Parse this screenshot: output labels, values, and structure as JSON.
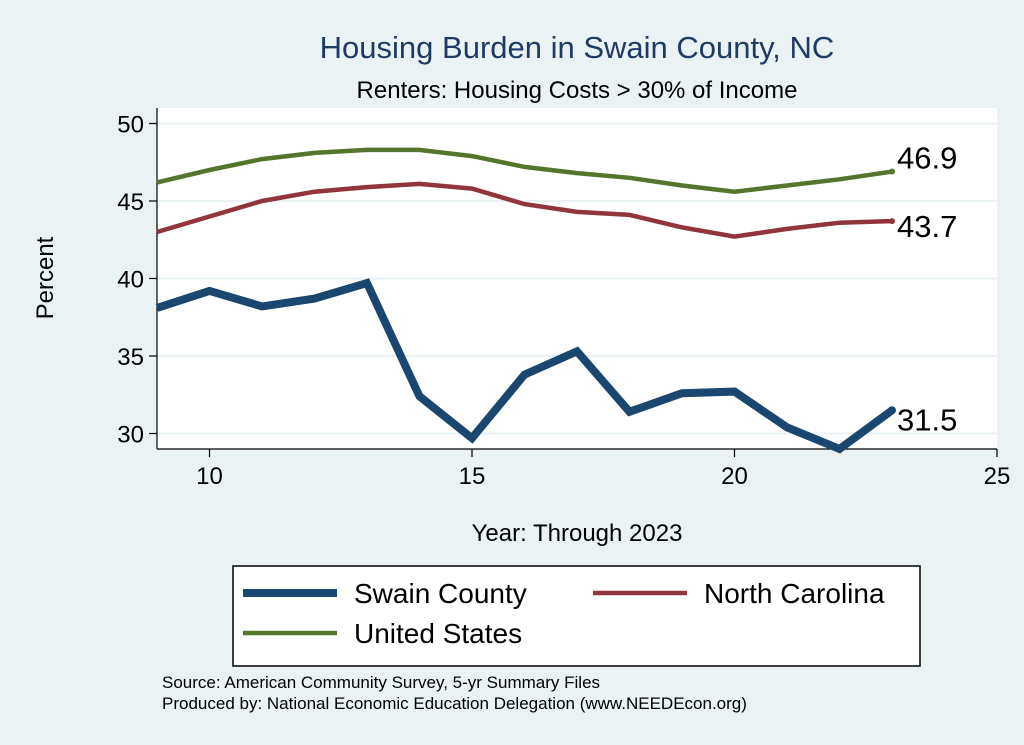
{
  "chart_data": {
    "type": "line",
    "title": "Housing Burden in Swain County, NC",
    "subtitle": "Renters: Housing Costs > 30% of Income",
    "xlabel": "Year: Through 2023",
    "ylabel": "Percent",
    "xlim": [
      9,
      25
    ],
    "ylim": [
      29,
      51
    ],
    "xticks": [
      10,
      15,
      20,
      25
    ],
    "yticks": [
      30,
      35,
      40,
      45,
      50
    ],
    "grid": true,
    "x": [
      9,
      10,
      11,
      12,
      13,
      14,
      15,
      16,
      17,
      18,
      19,
      20,
      21,
      22,
      23
    ],
    "series": [
      {
        "name": "Swain County",
        "color": "#1a476f",
        "values": [
          38.1,
          39.2,
          38.2,
          38.7,
          39.7,
          32.4,
          29.7,
          33.8,
          35.3,
          31.4,
          32.6,
          32.7,
          30.4,
          29.0,
          31.5
        ],
        "end_label": "31.5"
      },
      {
        "name": "North Carolina",
        "color": "#90353b",
        "values": [
          43.0,
          44.0,
          45.0,
          45.6,
          45.9,
          46.1,
          45.8,
          44.8,
          44.3,
          44.1,
          43.3,
          42.7,
          43.2,
          43.6,
          43.7
        ],
        "end_label": "43.7"
      },
      {
        "name": "United States",
        "color": "#55752f",
        "values": [
          46.2,
          47.0,
          47.7,
          48.1,
          48.3,
          48.3,
          47.9,
          47.2,
          46.8,
          46.5,
          46.0,
          45.6,
          46.0,
          46.4,
          46.9
        ],
        "end_label": "46.9"
      }
    ],
    "legend": {
      "placement": "bottom",
      "entries": [
        "Swain County",
        "North Carolina",
        "United States"
      ]
    }
  },
  "notes": {
    "source": "Source: American Community Survey, 5-yr Summary Files",
    "produced_by": "Produced by: National Economic Education Delegation (www.NEEDEcon.org)"
  }
}
